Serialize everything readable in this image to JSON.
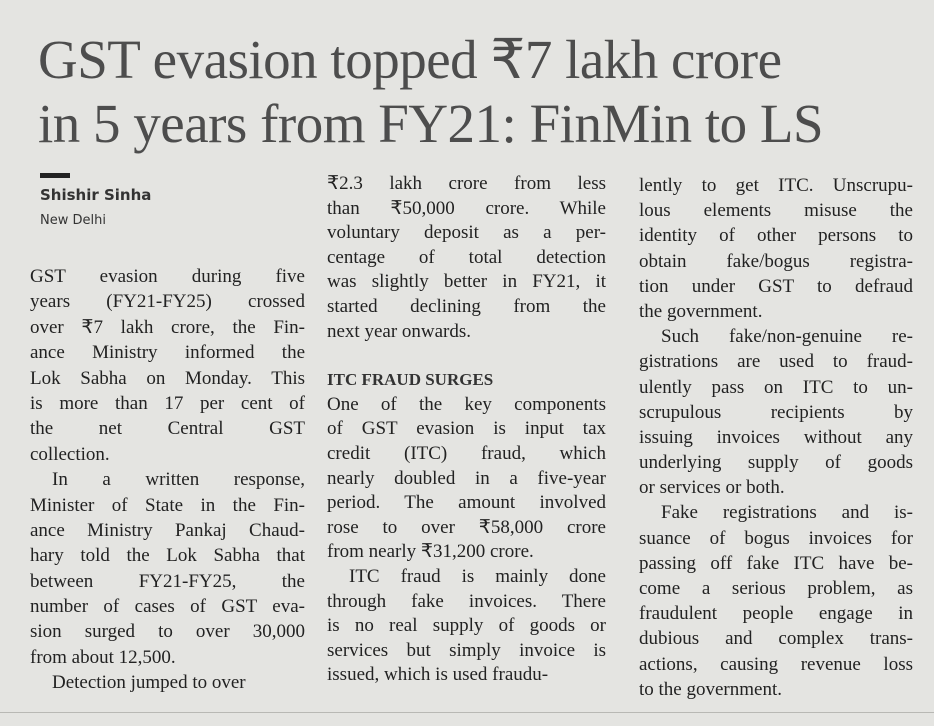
{
  "headline": {
    "lines": [
      "GST evasion topped ₹7 lakh crore",
      "in 5 years from FY21: FinMin to LS"
    ]
  },
  "byline": {
    "author": "Shishir Sinha",
    "location": "New Delhi"
  },
  "columns": [
    {
      "blocks": [
        {
          "lines": [
            "GST evasion during five",
            "years (FY21-FY25) crossed",
            "over ₹7 lakh crore, the Fin-",
            "ance Ministry informed the",
            "Lok Sabha on Monday. This",
            "is more than 17 per cent of",
            "the net Central GST",
            "collection."
          ]
        },
        {
          "lines": [
            "In a written response,",
            "Minister of State in the Fin-",
            "ance Ministry Pankaj Chaud-",
            "hary told the Lok Sabha that",
            "between FY21-FY25, the",
            "number of cases of GST eva-",
            "sion surged to over 30,000",
            "from about 12,500."
          ]
        },
        {
          "lines": [
            "Detection jumped to over"
          ]
        }
      ]
    },
    {
      "blocks": [
        {
          "lines": [
            "₹2.3 lakh crore from less",
            "than ₹50,000 crore. While",
            "voluntary deposit as a per-",
            "centage of total detection",
            "was slightly better in FY21, it",
            "started declining from the",
            "next year onwards."
          ]
        },
        {
          "heading": "ITC FRAUD SURGES"
        },
        {
          "lines": [
            "One of the key components",
            "of GST evasion is input tax",
            "credit (ITC) fraud, which",
            "nearly doubled in a five-year",
            "period. The amount involved",
            "rose to over ₹58,000 crore",
            "from nearly ₹31,200 crore."
          ]
        },
        {
          "lines": [
            "ITC fraud is mainly done",
            "through fake invoices. There",
            "is no real supply of goods or",
            "services but simply invoice is",
            "issued, which is used fraudu-"
          ]
        }
      ]
    },
    {
      "blocks": [
        {
          "lines": [
            "lently to get ITC. Unscrupu-",
            "lous elements misuse the",
            "identity of other persons to",
            "obtain fake/bogus registra-",
            "tion under GST to defraud",
            "the government."
          ]
        },
        {
          "lines": [
            "Such fake/non-genuine re-",
            "gistrations are used to fraud-",
            "ulently pass on ITC to un-",
            "scrupulous recipients by",
            "issuing invoices without any",
            "underlying supply of goods",
            "or services or both."
          ]
        },
        {
          "lines": [
            "Fake registrations and is-",
            "suance of bogus invoices for",
            "passing off fake ITC have be-",
            "come a serious problem, as",
            "fraudulent people engage in",
            "dubious and complex trans-",
            "actions, causing revenue loss",
            "to the government."
          ]
        }
      ]
    }
  ]
}
